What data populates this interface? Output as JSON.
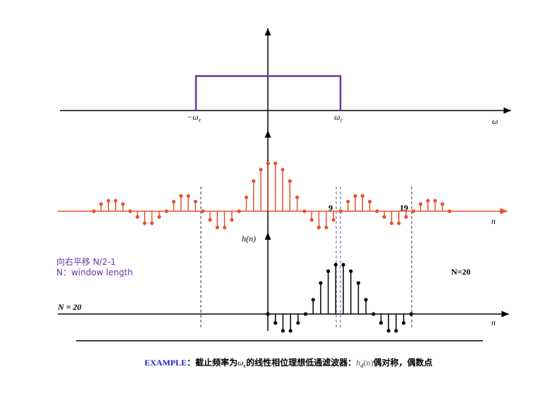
{
  "spectrum": {
    "neg_cutoff": {
      "symbol": "−ω",
      "sub": "c"
    },
    "pos_cutoff": {
      "symbol": "ω",
      "sub": "c"
    },
    "axis_label": "ω"
  },
  "sequence": [
    1,
    0.87,
    0.63,
    0.29,
    0,
    -0.18,
    -0.34,
    -0.34,
    -0.18,
    0,
    0.2,
    0.32,
    0.32,
    0.2,
    0,
    -0.12,
    -0.25,
    -0.25,
    -0.12,
    0,
    0.15,
    0.22,
    0.22,
    0.15,
    0
  ],
  "shifted": {
    "axis_label": "n",
    "marks": [
      "9",
      "19"
    ]
  },
  "windowed": {
    "axis_label": "n",
    "y_label": "h(n)",
    "N_label": "N = 20",
    "N_big": "N=20",
    "note": [
      "向右平移 N/2-1",
      "N：window length"
    ]
  },
  "caption": {
    "lead": "EXAMPLE",
    "text1": "：截止频率为",
    "sym": "ω",
    "sub": "c",
    "text2": "的线性相位理想低通滤波器：",
    "h": "h",
    "hsub": "d",
    "harg": "(n)",
    "text3": "偶对称，偶数点"
  }
}
